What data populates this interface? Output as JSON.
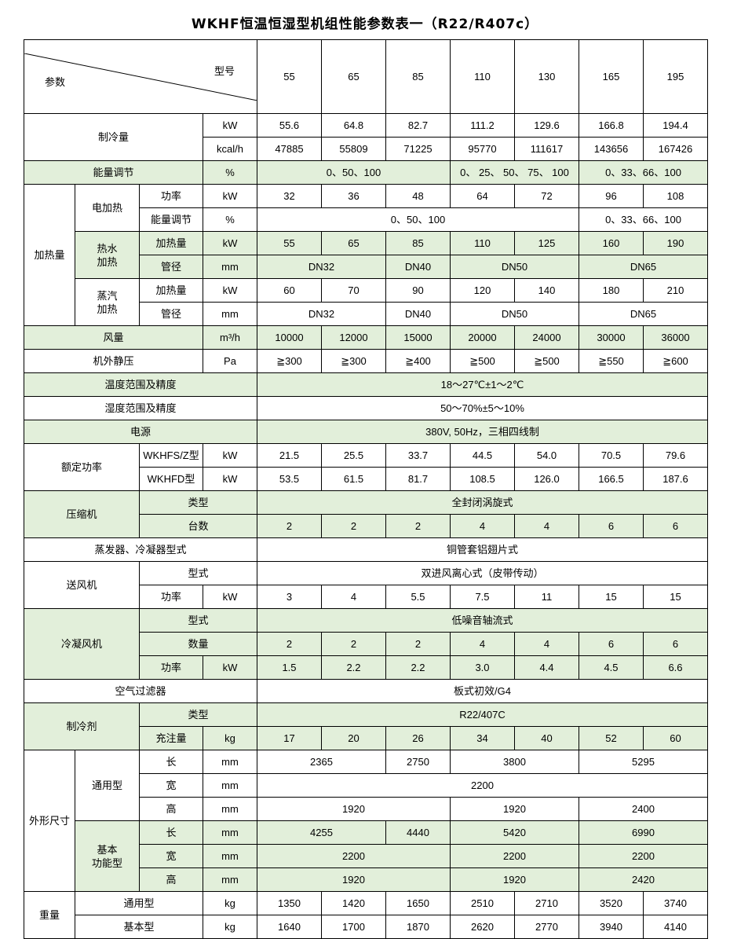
{
  "title": "WKHF恒温恒湿型机组性能参数表一（R22/R407c）",
  "header": {
    "param_label": "参数",
    "model_label": "型号",
    "models": [
      "55",
      "65",
      "85",
      "110",
      "130",
      "165",
      "195"
    ]
  },
  "green_color": "#e2efda",
  "rows": [
    [
      "制冷量",
      "kW",
      "55.6",
      "64.8",
      "82.7",
      "111.2",
      "129.6",
      "166.8",
      "194.4"
    ],
    [
      "kcal/h",
      "47885",
      "55809",
      "71225",
      "95770",
      "111617",
      "143656",
      "167426"
    ],
    [
      "能量调节",
      "%",
      "0、50、100",
      "0、 25、 50、 75、 100",
      "0、33、66、100"
    ],
    [
      "加热量",
      "电加热",
      "功率",
      "kW",
      "32",
      "36",
      "48",
      "64",
      "72",
      "96",
      "108"
    ],
    [
      "能量调节",
      "%",
      "0、50、100",
      "0、33、66、100"
    ],
    [
      "热水\n加热",
      "加热量",
      "kW",
      "55",
      "65",
      "85",
      "110",
      "125",
      "160",
      "190"
    ],
    [
      "管径",
      "mm",
      "DN32",
      "DN40",
      "DN50",
      "DN65"
    ],
    [
      "蒸汽\n加热",
      "加热量",
      "kW",
      "60",
      "70",
      "90",
      "120",
      "140",
      "180",
      "210"
    ],
    [
      "管径",
      "mm",
      "DN32",
      "DN40",
      "DN50",
      "DN65"
    ],
    [
      "风量",
      "m³/h",
      "10000",
      "12000",
      "15000",
      "20000",
      "24000",
      "30000",
      "36000"
    ],
    [
      "机外静压",
      "Pa",
      "≧300",
      "≧300",
      "≧400",
      "≧500",
      "≧500",
      "≧550",
      "≧600"
    ],
    [
      "温度范围及精度",
      "18～27℃±1～2℃"
    ],
    [
      "湿度范围及精度",
      "50～70%±5～10%"
    ],
    [
      "电源",
      "380V, 50Hz，三相四线制"
    ],
    [
      "额定功率",
      "WKHFS/Z型",
      "kW",
      "21.5",
      "25.5",
      "33.7",
      "44.5",
      "54.0",
      "70.5",
      "79.6"
    ],
    [
      "WKHFD型",
      "kW",
      "53.5",
      "61.5",
      "81.7",
      "108.5",
      "126.0",
      "166.5",
      "187.6"
    ],
    [
      "压缩机",
      "类型",
      "全封闭涡旋式"
    ],
    [
      "台数",
      "2",
      "2",
      "2",
      "4",
      "4",
      "6",
      "6"
    ],
    [
      "蒸发器、冷凝器型式",
      "铜管套铝翅片式"
    ],
    [
      "送风机",
      "型式",
      "双进风离心式（皮带传动）"
    ],
    [
      "功率",
      "kW",
      "3",
      "4",
      "5.5",
      "7.5",
      "11",
      "15",
      "15"
    ],
    [
      "冷凝风机",
      "型式",
      "低噪音轴流式"
    ],
    [
      "数量",
      "2",
      "2",
      "2",
      "4",
      "4",
      "6",
      "6"
    ],
    [
      "功率",
      "kW",
      "1.5",
      "2.2",
      "2.2",
      "3.0",
      "4.4",
      "4.5",
      "6.6"
    ],
    [
      "空气过滤器",
      "板式初效/G4"
    ],
    [
      "制冷剂",
      "类型",
      "R22/407C"
    ],
    [
      "充注量",
      "kg",
      "17",
      "20",
      "26",
      "34",
      "40",
      "52",
      "60"
    ],
    [
      "外形尺寸",
      "通用型",
      "长",
      "mm",
      "2365",
      "2750",
      "3800",
      "5295"
    ],
    [
      "宽",
      "mm",
      "2200"
    ],
    [
      "高",
      "mm",
      "1920",
      "1920",
      "2400"
    ],
    [
      "基本\n功能型",
      "长",
      "mm",
      "4255",
      "4440",
      "5420",
      "6990"
    ],
    [
      "宽",
      "mm",
      "2200",
      "2200",
      "2200"
    ],
    [
      "高",
      "mm",
      "1920",
      "1920",
      "2420"
    ],
    [
      "重量",
      "通用型",
      "kg",
      "1350",
      "1420",
      "1650",
      "2510",
      "2710",
      "3520",
      "3740"
    ],
    [
      "基本型",
      "kg",
      "1640",
      "1700",
      "1870",
      "2620",
      "2770",
      "3940",
      "4140"
    ]
  ]
}
